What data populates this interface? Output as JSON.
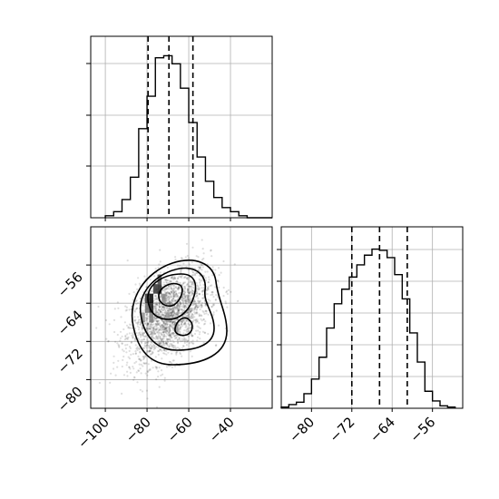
{
  "chart_data": [
    {
      "type": "histogram",
      "id": "x-marginal",
      "title": "",
      "xlabel": "",
      "ylabel": "",
      "xlim": [
        -107,
        -20
      ],
      "grid": true,
      "bin_edges": [
        -100,
        -96,
        -92,
        -88,
        -84,
        -80,
        -76,
        -72,
        -68,
        -64,
        -60,
        -56,
        -52,
        -48,
        -44,
        -40,
        -36,
        -32,
        -28,
        -24,
        -20
      ],
      "counts": [
        1,
        3,
        9,
        20,
        44,
        60,
        79,
        80,
        76,
        64,
        47,
        30,
        18,
        10,
        5,
        3,
        1,
        0,
        0,
        0
      ],
      "quantiles": [
        -79.5,
        -69.5,
        -58
      ]
    },
    {
      "type": "histogram",
      "id": "y-marginal",
      "title": "",
      "xlabel": "",
      "ylabel": "",
      "xlim": [
        -86,
        -50
      ],
      "grid": true,
      "x_ticks": [
        "−80",
        "−72",
        "−64",
        "−56"
      ],
      "bin_edges": [
        -86,
        -84.5,
        -83,
        -81.5,
        -80,
        -78.5,
        -77,
        -75.5,
        -74,
        -72.5,
        -71,
        -69.5,
        -68,
        -66.5,
        -65,
        -63.5,
        -62,
        -60.5,
        -59,
        -57.5,
        -56,
        -54.5,
        -53,
        -51.5
      ],
      "counts": [
        1,
        3,
        5,
        12,
        24,
        42,
        66,
        86,
        98,
        108,
        118,
        126,
        131,
        130,
        124,
        110,
        90,
        62,
        38,
        14,
        6,
        2,
        1
      ],
      "quantiles": [
        -72,
        -66.5,
        -61
      ]
    },
    {
      "type": "scatter",
      "id": "joint",
      "title": "",
      "xlabel": "",
      "ylabel": "",
      "xlim": [
        -107,
        -20
      ],
      "ylim": [
        -86,
        -48
      ],
      "grid": true,
      "x_ticks": [
        "−100",
        "−80",
        "−60",
        "−40"
      ],
      "y_ticks": [
        "−56",
        "−64",
        "−72",
        "−80"
      ],
      "center": [
        -69.5,
        -66.5
      ],
      "spread": [
        10,
        5
      ],
      "correlation": 0.45,
      "n_points": 2200,
      "dense_cells": [
        {
          "x": -80,
          "y": -63,
          "level": 0.2
        },
        {
          "x": -78,
          "y": -63,
          "level": 0.0
        },
        {
          "x": -78,
          "y": -65,
          "level": 0.1
        },
        {
          "x": -76,
          "y": -61,
          "level": 0.2
        },
        {
          "x": -74,
          "y": -61,
          "level": 0.15
        },
        {
          "x": -74,
          "y": -59,
          "level": 0.3
        },
        {
          "x": -80,
          "y": -65,
          "level": 0.45
        },
        {
          "x": -82,
          "y": -67,
          "level": 0.55
        },
        {
          "x": -78,
          "y": -67,
          "level": 0.5
        },
        {
          "x": -72,
          "y": -63,
          "level": 0.55
        },
        {
          "x": -70,
          "y": -67,
          "level": 0.6
        },
        {
          "x": -66,
          "y": -69,
          "level": 0.6
        }
      ],
      "contour_levels": 4
    }
  ]
}
